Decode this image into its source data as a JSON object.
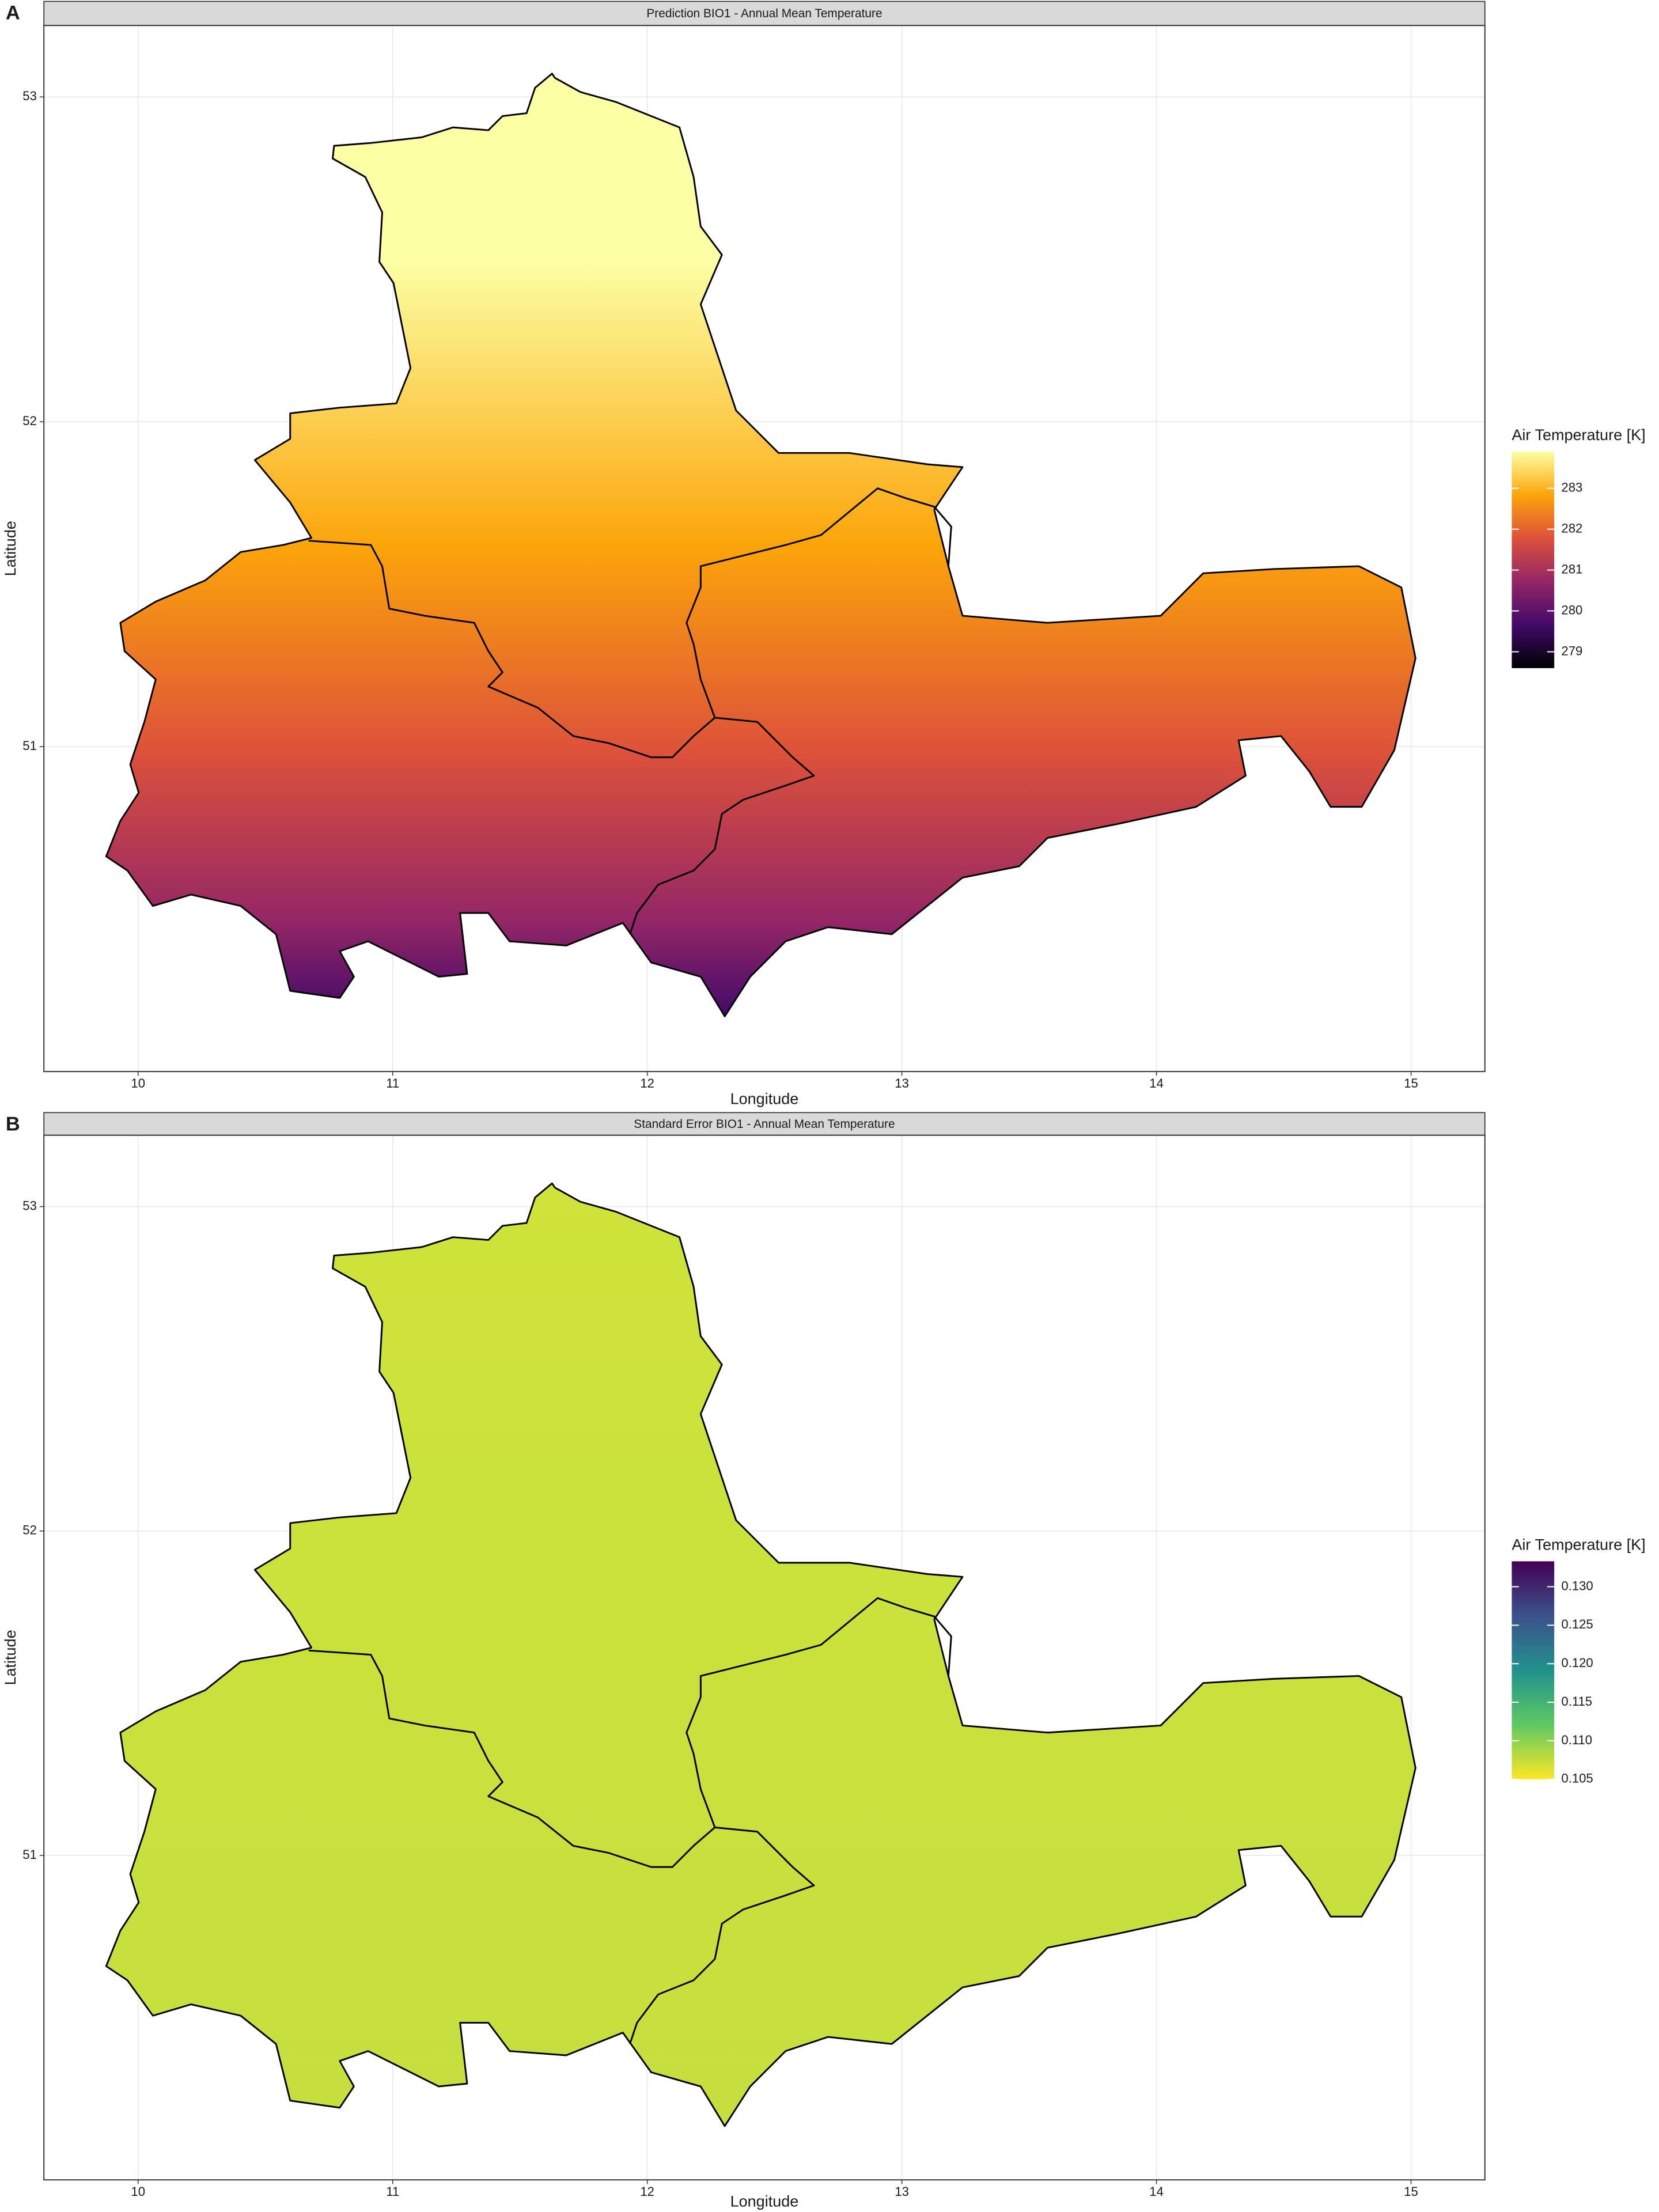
{
  "chart_data": [
    {
      "type": "map",
      "panel_label": "A",
      "title": "Prediction BIO1 - Annual Mean Temperature",
      "xlabel": "Longitude",
      "ylabel": "Latitude",
      "xlim": [
        9.63,
        15.29
      ],
      "ylim": [
        50.0,
        53.22
      ],
      "xticks": [
        10,
        11,
        12,
        13,
        14,
        15
      ],
      "yticks": [
        51,
        52,
        53
      ],
      "grid": true,
      "legend": {
        "title": "Air Temperature [K]",
        "lim": [
          278.6,
          283.9
        ],
        "ticks": [
          279,
          280,
          281,
          282,
          283
        ],
        "colors": [
          "#000004",
          "#420a68",
          "#932667",
          "#dd513a",
          "#fca50a",
          "#fcffa4"
        ]
      }
    },
    {
      "type": "map",
      "panel_label": "B",
      "title": "Standard Error BIO1 - Annual Mean Temperature",
      "xlabel": "Longitude",
      "ylabel": "Latitude",
      "xlim": [
        9.63,
        15.29
      ],
      "ylim": [
        50.0,
        53.22
      ],
      "xticks": [
        10,
        11,
        12,
        13,
        14,
        15
      ],
      "yticks": [
        51,
        52,
        53
      ],
      "grid": true,
      "legend": {
        "title": "Air Temperature [K]",
        "lim": [
          0.105,
          0.1333
        ],
        "ticks": [
          0.105,
          {
            "value": 0.11,
            "label": "0.110"
          },
          0.115,
          {
            "value": 0.12,
            "label": "0.120"
          },
          0.125,
          {
            "value": 0.13,
            "label": "0.130"
          }
        ],
        "colors": [
          "#fde725",
          "#5ec962",
          "#21918c",
          "#3b528b",
          "#440154"
        ]
      }
    }
  ]
}
